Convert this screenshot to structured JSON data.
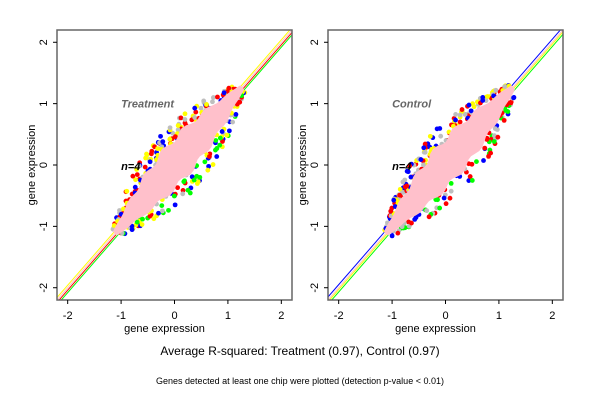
{
  "chart_data": [
    {
      "type": "scatter",
      "panel_label": "Treatment",
      "n_label": "n=4",
      "xlabel": "gene expression",
      "ylabel": "gene expression",
      "xlim": [
        -2.2,
        2.2
      ],
      "ylim": [
        -2.2,
        2.2
      ],
      "x_ticks": [
        -2,
        -1,
        0,
        1,
        2
      ],
      "y_ticks": [
        -2,
        -1,
        0,
        1,
        2
      ],
      "grid": false,
      "point_cloud": {
        "main_color": "#ffc0cb",
        "range": [
          -1.1,
          1.25
        ],
        "outlier_colors": [
          "#ff0000",
          "#0000ff",
          "#ffff00",
          "#00ff00",
          "#bebebe"
        ],
        "upper_outlier_colors": [
          "#ff0000",
          "#ffff00",
          "#0000ff",
          "#bebebe"
        ],
        "lower_outlier_colors": [
          "#00ff00",
          "#ff0000",
          "#0000ff",
          "#bebebe",
          "#ffff00"
        ]
      },
      "regression_lines": [
        {
          "color": "#ffc0cb",
          "intercept": 0.0,
          "slope": 1.0
        },
        {
          "color": "#ffff00",
          "intercept": 0.04,
          "slope": 1.0
        },
        {
          "color": "#ff0000",
          "intercept": -0.04,
          "slope": 1.0
        },
        {
          "color": "#00ff00",
          "intercept": -0.08,
          "slope": 1.0
        }
      ]
    },
    {
      "type": "scatter",
      "panel_label": "Control",
      "n_label": "n=4",
      "xlabel": "gene expression",
      "ylabel": "gene expression",
      "xlim": [
        -2.2,
        2.2
      ],
      "ylim": [
        -2.2,
        2.2
      ],
      "x_ticks": [
        -2,
        -1,
        0,
        1,
        2
      ],
      "y_ticks": [
        -2,
        -1,
        0,
        1,
        2
      ],
      "grid": false,
      "point_cloud": {
        "main_color": "#ffc0cb",
        "range": [
          -1.1,
          1.25
        ],
        "outlier_colors": [
          "#ff0000",
          "#0000ff",
          "#ffff00",
          "#00ff00",
          "#bebebe"
        ],
        "upper_outlier_colors": [
          "#ff0000",
          "#ffff00",
          "#0000ff",
          "#bebebe"
        ],
        "lower_outlier_colors": [
          "#00ff00",
          "#bebebe",
          "#ff0000",
          "#0000ff"
        ]
      },
      "regression_lines": [
        {
          "color": "#0000ff",
          "intercept": 0.05,
          "slope": 1.0
        },
        {
          "color": "#ffc0cb",
          "intercept": 0.0,
          "slope": 1.0
        },
        {
          "color": "#ffff00",
          "intercept": -0.03,
          "slope": 1.0
        },
        {
          "color": "#00ff00",
          "intercept": -0.07,
          "slope": 1.0
        }
      ]
    }
  ],
  "captions": {
    "main": "Average R-squared: Treatment (0.97), Control (0.97)",
    "sub": "Genes detected at least one chip were plotted (detection p-value < 0.01)"
  }
}
